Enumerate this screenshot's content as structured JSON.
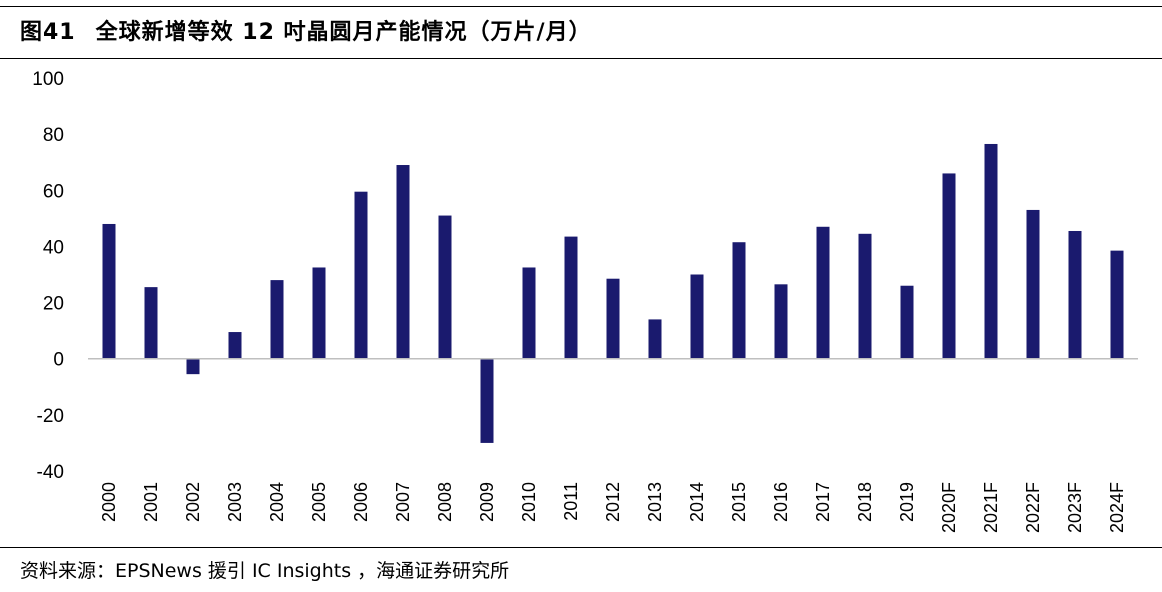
{
  "header": {
    "figure_number": "图41",
    "title": "全球新增等效 12 吋晶圆月产能情况（万片/月）"
  },
  "footer": {
    "source": "资料来源：EPSNews 援引 IC Insights ，海通证券研究所"
  },
  "colors": {
    "bar": "#1a1a6e",
    "axis": "#bfbfbf",
    "text": "#000000"
  },
  "chart_data": {
    "type": "bar",
    "title": "全球新增等效 12 吋晶圆月产能情况（万片/月）",
    "xlabel": "",
    "ylabel": "",
    "ylim": [
      -40,
      100
    ],
    "yticks": [
      -40,
      -20,
      0,
      20,
      40,
      60,
      80,
      100
    ],
    "grid": false,
    "legend": "none",
    "categories": [
      "2000",
      "2001",
      "2002",
      "2003",
      "2004",
      "2005",
      "2006",
      "2007",
      "2008",
      "2009",
      "2010",
      "2011",
      "2012",
      "2013",
      "2014",
      "2015",
      "2016",
      "2017",
      "2018",
      "2019",
      "2020F",
      "2021F",
      "2022F",
      "2023F",
      "2024F"
    ],
    "series": [
      {
        "values": [
          48,
          25.5,
          -5.5,
          9.5,
          28,
          32.5,
          59.5,
          69,
          51,
          -30,
          32.5,
          43.5,
          28.5,
          14,
          30,
          41.5,
          26.5,
          47,
          44.5,
          26,
          66,
          76.5,
          53,
          45.5,
          38.5
        ]
      }
    ]
  }
}
